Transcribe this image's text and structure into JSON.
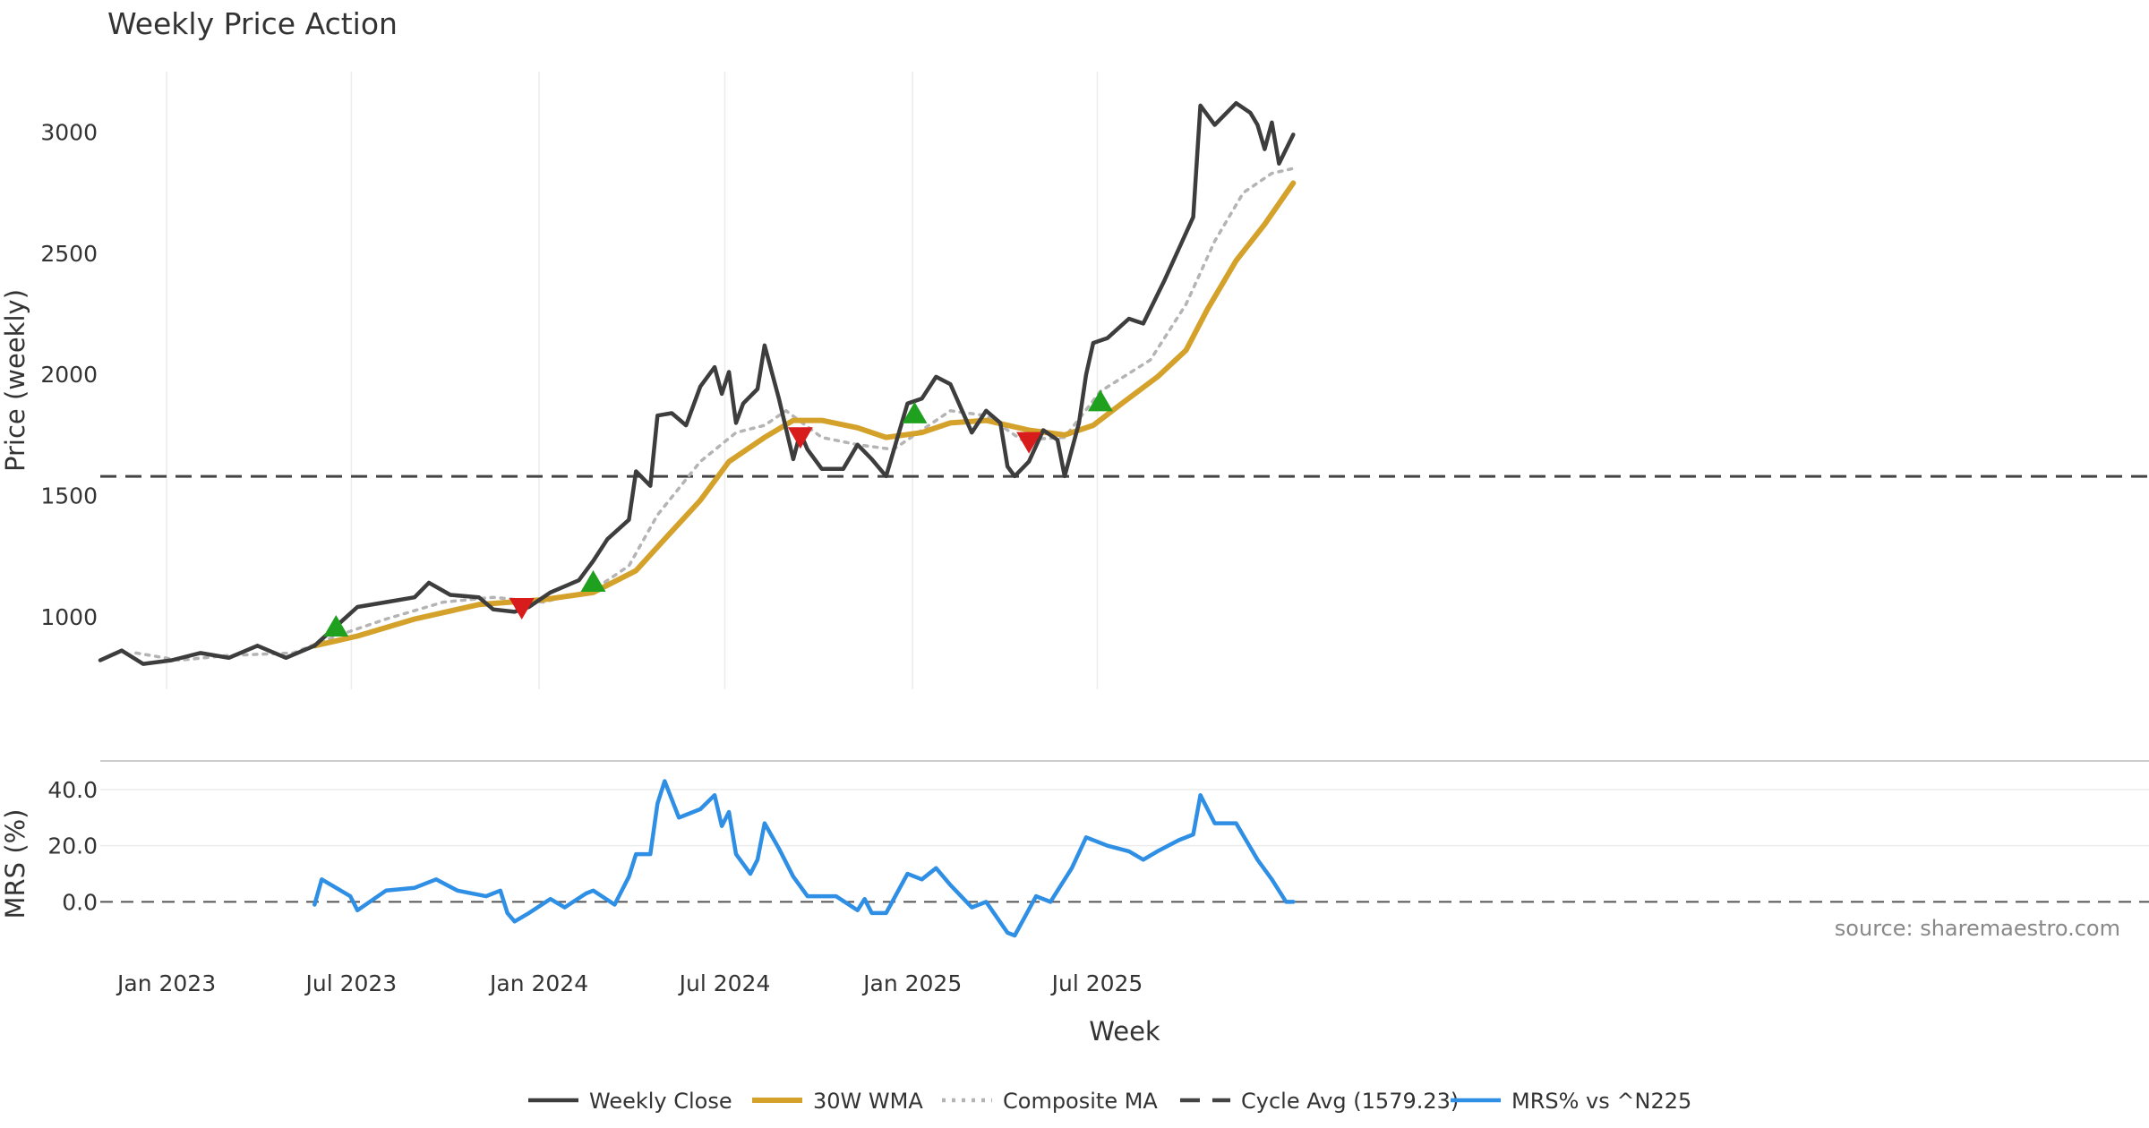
{
  "chart_data": {
    "type": "line",
    "title": "Weekly Price Action",
    "xlabel": "Week",
    "x_ticks": [
      "Jan 2023",
      "Jul 2023",
      "Jan 2024",
      "Jul 2024",
      "Jan 2025",
      "Jul 2025"
    ],
    "price_panel": {
      "ylabel": "Price (weekly)",
      "ylim": [
        700,
        3250
      ],
      "y_ticks": [
        "1000",
        "1500",
        "2000",
        "2500",
        "3000"
      ],
      "grid": true
    },
    "mrs_panel": {
      "ylabel": "MRS (%)",
      "ylim": [
        -12,
        47
      ],
      "y_ticks": [
        "0.0",
        "20.0",
        "40.0"
      ],
      "grid": true
    },
    "cycle_avg": 1579.23,
    "series": [
      {
        "name": "Weekly Close",
        "color": "#3d3d3d",
        "style": "solid",
        "points": [
          [
            "2022-10-28",
            820
          ],
          [
            "2022-11-18",
            860
          ],
          [
            "2022-12-09",
            805
          ],
          [
            "2023-01-06",
            820
          ],
          [
            "2023-02-03",
            850
          ],
          [
            "2023-03-03",
            830
          ],
          [
            "2023-03-31",
            880
          ],
          [
            "2023-04-28",
            830
          ],
          [
            "2023-05-26",
            880
          ],
          [
            "2023-06-16",
            960
          ],
          [
            "2023-07-07",
            1040
          ],
          [
            "2023-08-04",
            1060
          ],
          [
            "2023-09-01",
            1080
          ],
          [
            "2023-09-15",
            1140
          ],
          [
            "2023-10-06",
            1090
          ],
          [
            "2023-11-03",
            1080
          ],
          [
            "2023-11-17",
            1030
          ],
          [
            "2023-12-08",
            1020
          ],
          [
            "2023-12-22",
            1040
          ],
          [
            "2024-01-12",
            1100
          ],
          [
            "2024-02-09",
            1150
          ],
          [
            "2024-02-23",
            1230
          ],
          [
            "2024-03-08",
            1320
          ],
          [
            "2024-03-29",
            1400
          ],
          [
            "2024-04-05",
            1600
          ],
          [
            "2024-04-19",
            1540
          ],
          [
            "2024-04-26",
            1830
          ],
          [
            "2024-05-10",
            1840
          ],
          [
            "2024-05-24",
            1790
          ],
          [
            "2024-06-07",
            1950
          ],
          [
            "2024-06-21",
            2030
          ],
          [
            "2024-06-28",
            1920
          ],
          [
            "2024-07-05",
            2010
          ],
          [
            "2024-07-12",
            1800
          ],
          [
            "2024-07-19",
            1880
          ],
          [
            "2024-08-02",
            1940
          ],
          [
            "2024-08-09",
            2120
          ],
          [
            "2024-08-23",
            1900
          ],
          [
            "2024-09-06",
            1650
          ],
          [
            "2024-09-13",
            1760
          ],
          [
            "2024-09-20",
            1690
          ],
          [
            "2024-10-04",
            1610
          ],
          [
            "2024-10-25",
            1610
          ],
          [
            "2024-11-08",
            1710
          ],
          [
            "2024-11-22",
            1650
          ],
          [
            "2024-12-06",
            1580
          ],
          [
            "2024-12-27",
            1880
          ],
          [
            "2025-01-10",
            1900
          ],
          [
            "2025-01-24",
            1990
          ],
          [
            "2025-02-07",
            1960
          ],
          [
            "2025-02-28",
            1760
          ],
          [
            "2025-03-14",
            1850
          ],
          [
            "2025-03-28",
            1800
          ],
          [
            "2025-04-04",
            1620
          ],
          [
            "2025-04-11",
            1580
          ],
          [
            "2025-04-25",
            1640
          ],
          [
            "2025-05-09",
            1770
          ],
          [
            "2025-05-23",
            1730
          ],
          [
            "2025-05-30",
            1580
          ],
          [
            "2025-06-13",
            1800
          ],
          [
            "2025-06-20",
            2000
          ],
          [
            "2025-06-27",
            2130
          ],
          [
            "2025-07-11",
            2150
          ],
          [
            "2025-08-01",
            2230
          ],
          [
            "2025-08-15",
            2210
          ],
          [
            "2025-09-05",
            2390
          ],
          [
            "2025-09-19",
            2520
          ],
          [
            "2025-10-03",
            2650
          ],
          [
            "2025-10-10",
            3110
          ],
          [
            "2025-10-24",
            3030
          ],
          [
            "2025-11-14",
            3120
          ],
          [
            "2025-11-28",
            3080
          ],
          [
            "2025-12-05",
            3030
          ],
          [
            "2025-12-12",
            2930
          ],
          [
            "2025-12-19",
            3040
          ],
          [
            "2025-12-26",
            2870
          ],
          [
            "2026-01-09",
            2990
          ]
        ]
      },
      {
        "name": "30W WMA",
        "color": "#d4a12a",
        "style": "solid",
        "points": [
          [
            "2023-05-26",
            880
          ],
          [
            "2023-07-07",
            920
          ],
          [
            "2023-09-01",
            990
          ],
          [
            "2023-11-03",
            1050
          ],
          [
            "2024-01-05",
            1070
          ],
          [
            "2024-02-23",
            1100
          ],
          [
            "2024-04-05",
            1190
          ],
          [
            "2024-05-03",
            1320
          ],
          [
            "2024-06-07",
            1480
          ],
          [
            "2024-07-05",
            1640
          ],
          [
            "2024-08-09",
            1740
          ],
          [
            "2024-09-06",
            1810
          ],
          [
            "2024-10-04",
            1810
          ],
          [
            "2024-11-08",
            1780
          ],
          [
            "2024-12-06",
            1740
          ],
          [
            "2025-01-10",
            1760
          ],
          [
            "2025-02-07",
            1800
          ],
          [
            "2025-03-14",
            1810
          ],
          [
            "2025-04-25",
            1770
          ],
          [
            "2025-05-30",
            1750
          ],
          [
            "2025-06-27",
            1790
          ],
          [
            "2025-07-25",
            1880
          ],
          [
            "2025-08-29",
            1990
          ],
          [
            "2025-09-26",
            2100
          ],
          [
            "2025-10-17",
            2270
          ],
          [
            "2025-11-14",
            2470
          ],
          [
            "2025-12-12",
            2620
          ],
          [
            "2026-01-09",
            2790
          ]
        ]
      },
      {
        "name": "Composite MA",
        "color": "#b4b4b4",
        "style": "dotted",
        "points": [
          [
            "2022-12-02",
            850
          ],
          [
            "2023-01-13",
            820
          ],
          [
            "2023-03-03",
            840
          ],
          [
            "2023-05-05",
            850
          ],
          [
            "2023-06-16",
            920
          ],
          [
            "2023-08-04",
            990
          ],
          [
            "2023-09-29",
            1060
          ],
          [
            "2023-11-17",
            1080
          ],
          [
            "2024-01-05",
            1060
          ],
          [
            "2024-02-23",
            1110
          ],
          [
            "2024-03-29",
            1210
          ],
          [
            "2024-04-26",
            1420
          ],
          [
            "2024-06-07",
            1640
          ],
          [
            "2024-07-12",
            1760
          ],
          [
            "2024-08-09",
            1790
          ],
          [
            "2024-08-30",
            1850
          ],
          [
            "2024-10-04",
            1740
          ],
          [
            "2024-11-08",
            1710
          ],
          [
            "2024-12-13",
            1690
          ],
          [
            "2025-01-17",
            1790
          ],
          [
            "2025-02-07",
            1850
          ],
          [
            "2025-03-14",
            1830
          ],
          [
            "2025-04-18",
            1730
          ],
          [
            "2025-05-30",
            1740
          ],
          [
            "2025-07-04",
            1930
          ],
          [
            "2025-08-22",
            2060
          ],
          [
            "2025-09-26",
            2290
          ],
          [
            "2025-10-24",
            2550
          ],
          [
            "2025-11-21",
            2750
          ],
          [
            "2025-12-19",
            2830
          ],
          [
            "2026-01-09",
            2850
          ]
        ]
      },
      {
        "name": "Cycle Avg (1579.23)",
        "color": "#444444",
        "style": "dashed",
        "value": 1579.23
      },
      {
        "name": "MRS% vs ^N225",
        "color": "#2f8fe4",
        "style": "solid",
        "panel": "mrs",
        "points": [
          [
            "2023-05-26",
            -1
          ],
          [
            "2023-06-02",
            8
          ],
          [
            "2023-06-16",
            5
          ],
          [
            "2023-06-30",
            2
          ],
          [
            "2023-07-07",
            -3
          ],
          [
            "2023-08-04",
            4
          ],
          [
            "2023-09-01",
            5
          ],
          [
            "2023-09-22",
            8
          ],
          [
            "2023-10-13",
            4
          ],
          [
            "2023-11-10",
            2
          ],
          [
            "2023-11-24",
            4
          ],
          [
            "2023-12-01",
            -4
          ],
          [
            "2023-12-08",
            -7
          ],
          [
            "2023-12-22",
            -4
          ],
          [
            "2024-01-12",
            1
          ],
          [
            "2024-01-26",
            -2
          ],
          [
            "2024-02-16",
            3
          ],
          [
            "2024-02-23",
            4
          ],
          [
            "2024-03-15",
            -1
          ],
          [
            "2024-03-29",
            9
          ],
          [
            "2024-04-05",
            17
          ],
          [
            "2024-04-19",
            17
          ],
          [
            "2024-04-26",
            35
          ],
          [
            "2024-05-03",
            43
          ],
          [
            "2024-05-17",
            30
          ],
          [
            "2024-06-07",
            33
          ],
          [
            "2024-06-21",
            38
          ],
          [
            "2024-06-28",
            27
          ],
          [
            "2024-07-05",
            32
          ],
          [
            "2024-07-12",
            17
          ],
          [
            "2024-07-26",
            10
          ],
          [
            "2024-08-02",
            15
          ],
          [
            "2024-08-09",
            28
          ],
          [
            "2024-08-23",
            19
          ],
          [
            "2024-09-06",
            9
          ],
          [
            "2024-09-20",
            2
          ],
          [
            "2024-10-18",
            2
          ],
          [
            "2024-11-08",
            -3
          ],
          [
            "2024-11-15",
            1
          ],
          [
            "2024-11-22",
            -4
          ],
          [
            "2024-12-06",
            -4
          ],
          [
            "2024-12-27",
            10
          ],
          [
            "2025-01-10",
            8
          ],
          [
            "2025-01-24",
            12
          ],
          [
            "2025-02-07",
            6
          ],
          [
            "2025-02-28",
            -2
          ],
          [
            "2025-03-14",
            0
          ],
          [
            "2025-04-04",
            -11
          ],
          [
            "2025-04-11",
            -12
          ],
          [
            "2025-05-02",
            2
          ],
          [
            "2025-05-16",
            0
          ],
          [
            "2025-06-06",
            12
          ],
          [
            "2025-06-20",
            23
          ],
          [
            "2025-07-11",
            20
          ],
          [
            "2025-08-01",
            18
          ],
          [
            "2025-08-15",
            15
          ],
          [
            "2025-08-29",
            18
          ],
          [
            "2025-09-19",
            22
          ],
          [
            "2025-10-03",
            24
          ],
          [
            "2025-10-10",
            38
          ],
          [
            "2025-10-24",
            28
          ],
          [
            "2025-11-14",
            28
          ],
          [
            "2025-12-05",
            15
          ],
          [
            "2025-12-19",
            8
          ],
          [
            "2026-01-02",
            0
          ],
          [
            "2026-01-09",
            0
          ]
        ]
      }
    ],
    "signals_up": [
      [
        "2023-06-16",
        955
      ],
      [
        "2024-02-23",
        1140
      ],
      [
        "2025-01-03",
        1835
      ],
      [
        "2025-07-04",
        1885
      ]
    ],
    "signals_down": [
      [
        "2023-12-15",
        1040
      ],
      [
        "2024-09-13",
        1745
      ],
      [
        "2025-04-25",
        1725
      ]
    ],
    "signal_colors": {
      "up": "#1fa01f",
      "down": "#d81b1b"
    },
    "legend_placement": "bottom-center",
    "source": "source: sharemaestro.com"
  }
}
